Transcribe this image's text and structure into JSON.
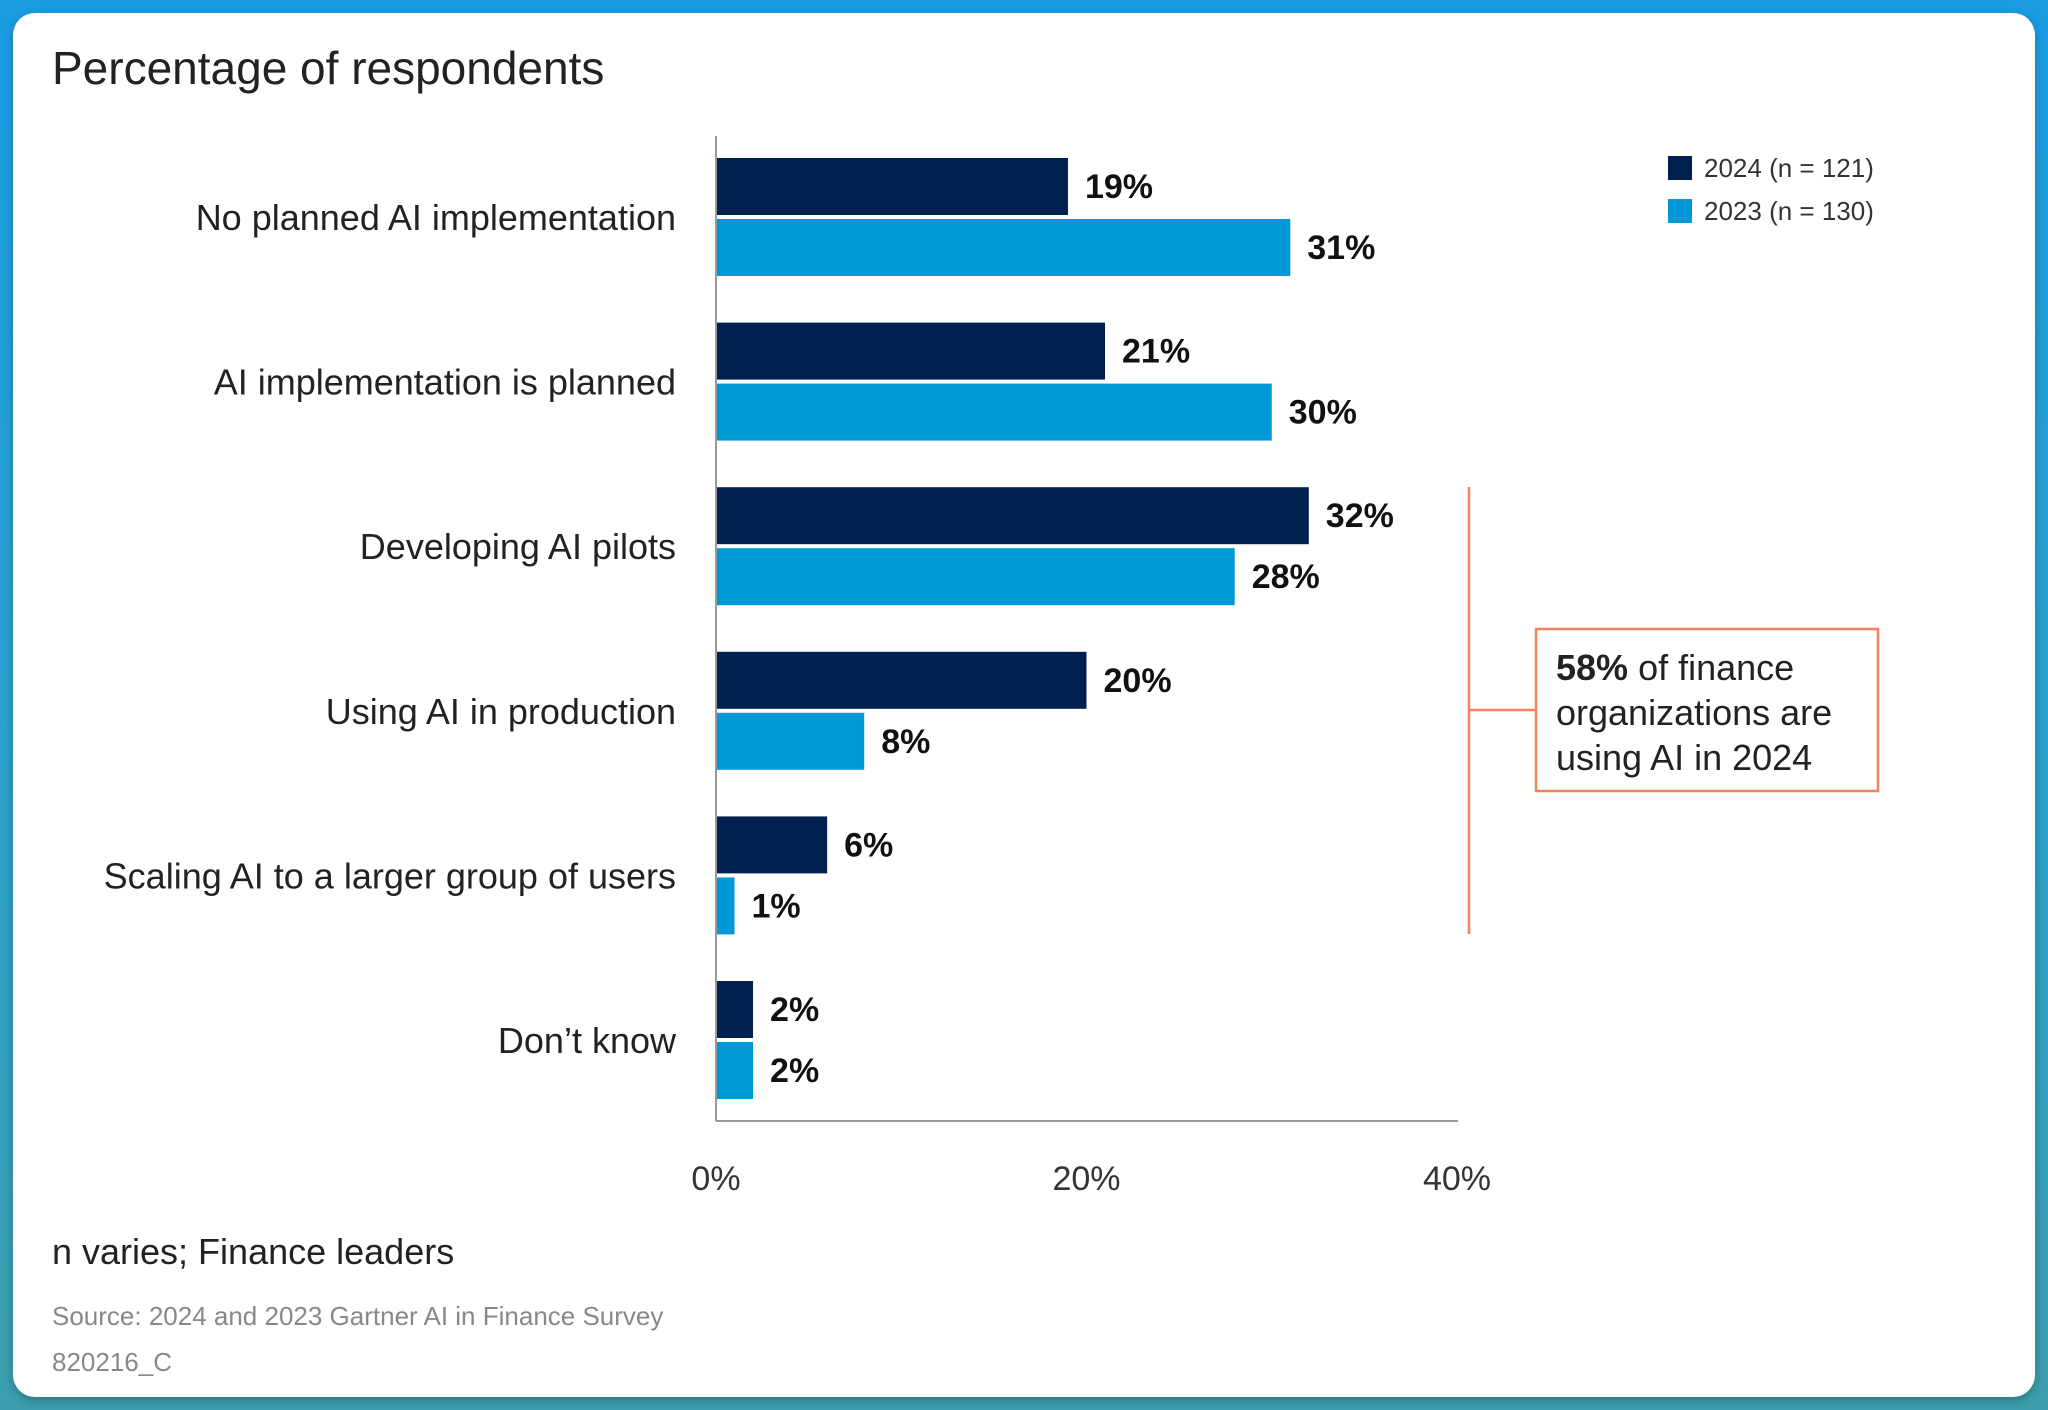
{
  "chart_data": {
    "type": "bar",
    "orientation": "horizontal",
    "title": "Percentage of respondents",
    "categories": [
      "No planned AI implementation",
      "AI implementation is planned",
      "Developing AI pilots",
      "Using AI in production",
      "Scaling AI to a larger group of users",
      "Don’t know"
    ],
    "series": [
      {
        "name": "2024 (n = 121)",
        "color": "#00214f",
        "values": [
          19,
          21,
          32,
          20,
          6,
          2
        ],
        "labels": [
          "19%",
          "21%",
          "32%",
          "20%",
          "6%",
          "2%"
        ]
      },
      {
        "name": "2023 (n = 130)",
        "color": "#0099d8",
        "values": [
          31,
          30,
          28,
          8,
          1,
          2
        ],
        "labels": [
          "31%",
          "30%",
          "28%",
          "8%",
          "1%",
          "2%"
        ]
      }
    ],
    "xlim": [
      0,
      40
    ],
    "xticks": [
      "0%",
      "20%",
      "40%"
    ],
    "grid": false,
    "legend_placement": "top-right",
    "annotation": {
      "bold": "58%",
      "text_line1": " of finance",
      "text_line2": "organizations are",
      "text_line3": "using AI in 2024",
      "color": "#f4845f",
      "bracket_categories": [
        "Developing AI pilots",
        "Using AI in production",
        "Scaling AI to a larger group of users"
      ]
    },
    "subtitle": "n varies; Finance leaders",
    "source": "Source: 2024 and 2023 Gartner AI in Finance Survey",
    "code": "820216_C"
  }
}
